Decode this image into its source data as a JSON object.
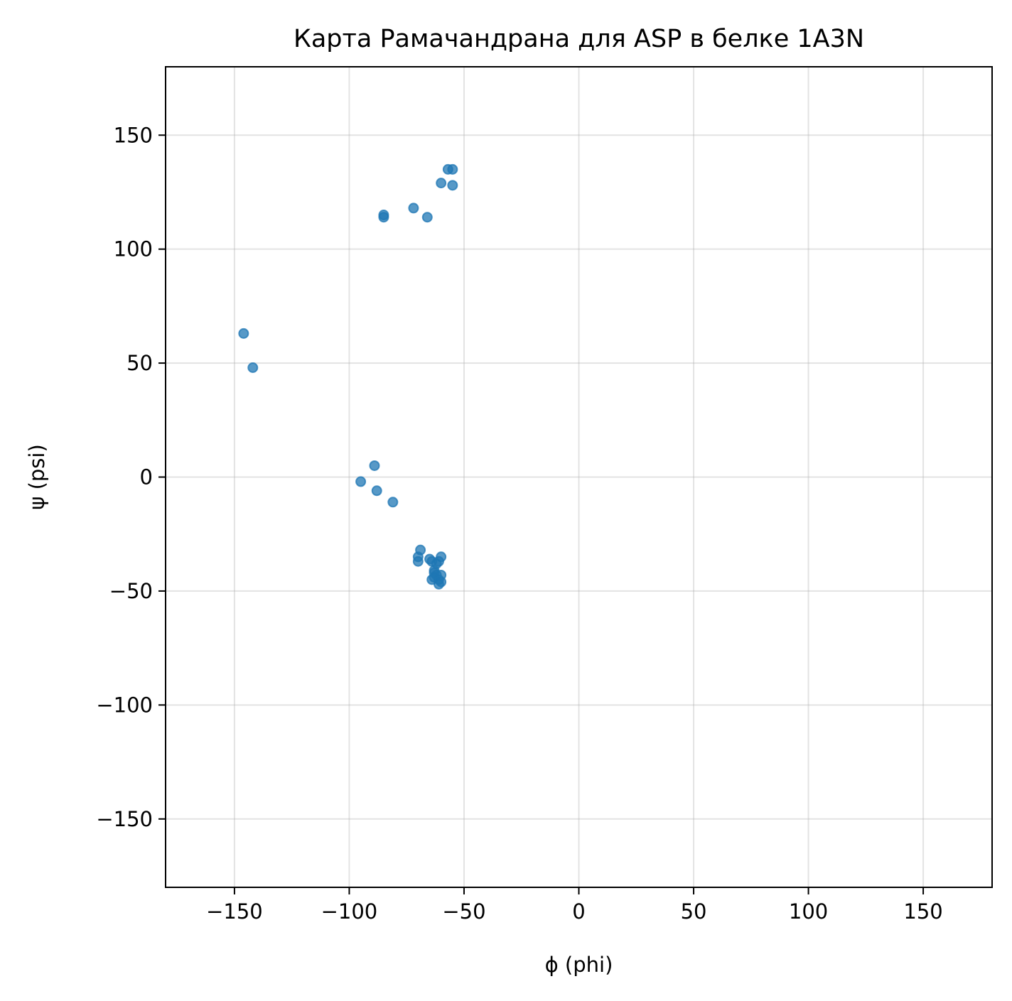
{
  "chart_data": {
    "type": "scatter",
    "title": "Карта Рамачандрана для ASP в белке 1A3N",
    "xlabel": "ϕ (phi)",
    "ylabel": "ψ (psi)",
    "xlim": [
      -180,
      180
    ],
    "ylim": [
      -180,
      180
    ],
    "xticks": [
      -150,
      -100,
      -50,
      0,
      50,
      100,
      150
    ],
    "yticks": [
      -150,
      -100,
      -50,
      0,
      50,
      100,
      150
    ],
    "xtick_labels": [
      "−150",
      "−100",
      "−50",
      "0",
      "50",
      "100",
      "150"
    ],
    "ytick_labels": [
      "−150",
      "−100",
      "−50",
      "0",
      "50",
      "100",
      "150"
    ],
    "grid": true,
    "marker_color": "#1f77b4",
    "marker_alpha": 0.75,
    "points": [
      {
        "phi": -146,
        "psi": 63
      },
      {
        "phi": -142,
        "psi": 48
      },
      {
        "phi": -85,
        "psi": 115
      },
      {
        "phi": -85,
        "psi": 114
      },
      {
        "phi": -72,
        "psi": 118
      },
      {
        "phi": -66,
        "psi": 114
      },
      {
        "phi": -60,
        "psi": 129
      },
      {
        "phi": -57,
        "psi": 135
      },
      {
        "phi": -55,
        "psi": 135
      },
      {
        "phi": -55,
        "psi": 128
      },
      {
        "phi": -89,
        "psi": 5
      },
      {
        "phi": -95,
        "psi": -2
      },
      {
        "phi": -88,
        "psi": -6
      },
      {
        "phi": -81,
        "psi": -11
      },
      {
        "phi": -69,
        "psi": -32
      },
      {
        "phi": -70,
        "psi": -35
      },
      {
        "phi": -70,
        "psi": -37
      },
      {
        "phi": -65,
        "psi": -36
      },
      {
        "phi": -64,
        "psi": -37
      },
      {
        "phi": -62,
        "psi": -38
      },
      {
        "phi": -60,
        "psi": -35
      },
      {
        "phi": -61,
        "psi": -37
      },
      {
        "phi": -63,
        "psi": -41
      },
      {
        "phi": -63,
        "psi": -42
      },
      {
        "phi": -62,
        "psi": -43
      },
      {
        "phi": -60,
        "psi": -43
      },
      {
        "phi": -64,
        "psi": -45
      },
      {
        "phi": -63,
        "psi": -44
      },
      {
        "phi": -61,
        "psi": -45
      },
      {
        "phi": -60,
        "psi": -46
      },
      {
        "phi": -61,
        "psi": -47
      }
    ]
  }
}
